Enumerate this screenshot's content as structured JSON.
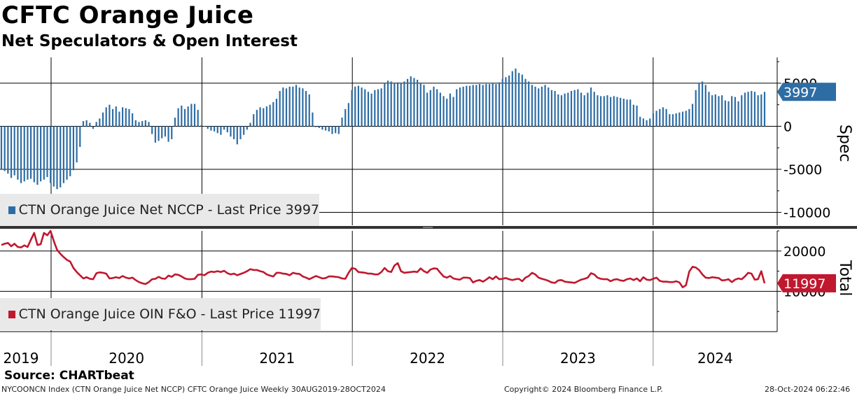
{
  "title": "CFTC Orange Juice",
  "subtitle": "Net Speculators & Open Interest",
  "source": "Source: CHARTbeat",
  "footer": {
    "left": "NYCOONCN Index (CTN Orange Juice Net NCCP) CFTC Orange Juice  Weekly 30AUG2019-28OCT2024",
    "center": "Copyright© 2024 Bloomberg Finance L.P.",
    "right": "28-Oct-2024 06:22:46"
  },
  "colors": {
    "spec": "#2e6da4",
    "oi": "#c0182f",
    "grid": "#000000"
  },
  "chart_data": [
    {
      "type": "bar",
      "panel": "top",
      "ylabel": "Spec",
      "ylim": [
        -11500,
        8000
      ],
      "yticks": [
        5000,
        0,
        -5000,
        -10000
      ],
      "x_start": "2019-08-30",
      "x_end": "2024-10-28",
      "frequency": "weekly",
      "legend": "CTN Orange Juice Net NCCP - Last Price 3997",
      "last_value_label": "3997",
      "series": [
        {
          "name": "CTN Orange Juice Net NCCP",
          "values": [
            -5000,
            -5200,
            -5500,
            -6000,
            -5700,
            -6200,
            -6600,
            -6400,
            -6200,
            -6100,
            -6500,
            -6800,
            -6400,
            -6200,
            -5900,
            -6600,
            -7000,
            -7300,
            -7100,
            -6600,
            -6200,
            -5800,
            -5100,
            -4200,
            -2400,
            600,
            700,
            400,
            -300,
            500,
            900,
            1600,
            2200,
            2500,
            2000,
            2300,
            1700,
            2200,
            2100,
            2000,
            1500,
            700,
            500,
            600,
            700,
            500,
            -900,
            -1900,
            -1700,
            -1400,
            -1200,
            -1800,
            -1500,
            1000,
            2100,
            2400,
            2000,
            2300,
            2600,
            2600,
            1900,
            100,
            0,
            -300,
            -500,
            -600,
            -800,
            -1000,
            -400,
            -700,
            -1200,
            -1500,
            -2100,
            -1500,
            -1000,
            -400,
            400,
            1400,
            1900,
            2200,
            2100,
            2300,
            2500,
            2800,
            3200,
            4100,
            4500,
            4400,
            4600,
            4600,
            4800,
            4500,
            4400,
            4100,
            3700,
            1600,
            -100,
            -200,
            -400,
            -500,
            -600,
            -900,
            -800,
            -900,
            1000,
            2000,
            2700,
            4200,
            4600,
            4700,
            4500,
            4300,
            4000,
            3800,
            4200,
            4300,
            4400,
            5000,
            5300,
            5200,
            5000,
            5100,
            5000,
            5200,
            5500,
            5800,
            5600,
            5400,
            5000,
            4800,
            3900,
            4200,
            4600,
            4300,
            3900,
            3500,
            3200,
            3800,
            3400,
            4300,
            4500,
            4600,
            4700,
            4700,
            4800,
            4800,
            4900,
            4800,
            4900,
            4900,
            5000,
            4900,
            5100,
            5500,
            5700,
            5900,
            6400,
            6700,
            6200,
            6000,
            5500,
            5200,
            4800,
            4600,
            4400,
            4600,
            4800,
            4500,
            4200,
            4100,
            3700,
            3600,
            3800,
            3900,
            4100,
            4200,
            4300,
            3900,
            3600,
            3900,
            4500,
            4000,
            3600,
            3500,
            3500,
            3600,
            3400,
            3500,
            3400,
            3300,
            3200,
            3100,
            3100,
            2500,
            2400,
            1100,
            900,
            700,
            900,
            1500,
            1800,
            2000,
            2200,
            2000,
            1400,
            1400,
            1500,
            1600,
            1700,
            1800,
            2000,
            2600,
            4200,
            5000,
            5200,
            4800,
            4000,
            3600,
            3700,
            3500,
            3600,
            3000,
            2900,
            3500,
            3400,
            2900,
            3600,
            3900,
            4000,
            4100,
            4000,
            3600,
            3700,
            3997
          ]
        }
      ]
    },
    {
      "type": "line",
      "panel": "bottom",
      "ylabel": "Total",
      "ylim": [
        0,
        25000
      ],
      "yticks": [
        20000,
        10000
      ],
      "x_start": "2019-08-30",
      "x_end": "2024-10-28",
      "frequency": "weekly",
      "legend": "CTN Orange Juice OIN F&O - Last Price 11997",
      "last_value_label": "11997",
      "series": [
        {
          "name": "CTN Orange Juice OIN F&O",
          "values": [
            21500,
            21800,
            22000,
            21200,
            21800,
            21000,
            20900,
            21400,
            21000,
            22800,
            24500,
            21500,
            21700,
            24500,
            23900,
            25000,
            22500,
            20300,
            19300,
            18500,
            17800,
            17400,
            15800,
            14800,
            14000,
            13200,
            13500,
            13100,
            13000,
            14500,
            14700,
            14600,
            14400,
            13200,
            13300,
            13500,
            13300,
            13800,
            13400,
            13200,
            13400,
            12800,
            12300,
            12000,
            11800,
            12300,
            13000,
            13100,
            13600,
            13200,
            13100,
            13900,
            13600,
            14200,
            14100,
            13700,
            13200,
            13000,
            13000,
            13100,
            14100,
            14200,
            14000,
            14600,
            14900,
            14800,
            15000,
            14800,
            15100,
            14500,
            14200,
            14400,
            14000,
            14300,
            14600,
            15000,
            15500,
            15300,
            15300,
            15000,
            14800,
            14200,
            13900,
            13700,
            14600,
            14600,
            14400,
            14300,
            14000,
            14600,
            14400,
            14300,
            13700,
            13400,
            13000,
            13400,
            13800,
            13500,
            13200,
            13300,
            13700,
            13700,
            13600,
            13500,
            13200,
            13100,
            14600,
            15800,
            15600,
            14800,
            14700,
            14600,
            14400,
            14400,
            14200,
            14200,
            14800,
            15800,
            15000,
            14800,
            16400,
            17000,
            15000,
            14600,
            14700,
            14800,
            14900,
            14800,
            15700,
            15000,
            14600,
            15400,
            15700,
            15600,
            14600,
            13700,
            13400,
            13800,
            13200,
            13000,
            12900,
            13400,
            13400,
            13300,
            12200,
            12600,
            12800,
            12400,
            12900,
            13500,
            13000,
            13700,
            13000,
            13100,
            13300,
            13000,
            12800,
            13000,
            13100,
            12500,
            13400,
            13800,
            14600,
            14200,
            13400,
            13100,
            12900,
            12600,
            12200,
            12100,
            12700,
            12800,
            12400,
            12300,
            12200,
            12100,
            12500,
            12900,
            13100,
            13400,
            14500,
            14200,
            13400,
            13100,
            13000,
            13000,
            12500,
            12900,
            13000,
            12700,
            12600,
            13000,
            13200,
            12800,
            13200,
            12500,
            13500,
            12900,
            12800,
            13100,
            13400,
            12600,
            12400,
            12400,
            12300,
            12300,
            12500,
            12200,
            11000,
            11500,
            14900,
            16100,
            15900,
            15300,
            14200,
            13400,
            13300,
            13500,
            13400,
            13300,
            12700,
            12800,
            13000,
            12300,
            12900,
            13200,
            13000,
            13700,
            14600,
            14400,
            12900,
            13000,
            15000,
            11997
          ]
        }
      ]
    }
  ],
  "x_axis": {
    "year_labels": [
      "2019",
      "2020",
      "2021",
      "2022",
      "2023",
      "2024"
    ],
    "year_dates": [
      "2020-01-01",
      "2021-01-01",
      "2022-01-01",
      "2023-01-01",
      "2024-01-01"
    ]
  }
}
